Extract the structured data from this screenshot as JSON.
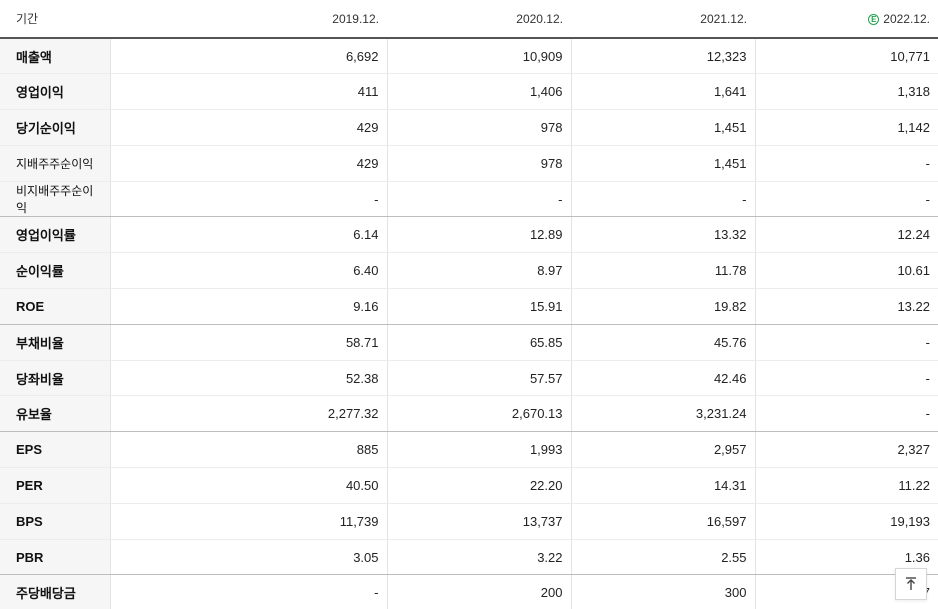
{
  "header": {
    "period_label": "기간",
    "years": [
      "2019.12.",
      "2020.12.",
      "2021.12.",
      "2022.12."
    ],
    "estimate_mark": "E"
  },
  "rows": [
    {
      "label": "매출액",
      "values": [
        "6,692",
        "10,909",
        "12,323",
        "10,771"
      ]
    },
    {
      "label": "영업이익",
      "values": [
        "411",
        "1,406",
        "1,641",
        "1,318"
      ]
    },
    {
      "label": "당기순이익",
      "values": [
        "429",
        "978",
        "1,451",
        "1,142"
      ]
    },
    {
      "label": "지배주주순이익",
      "values": [
        "429",
        "978",
        "1,451",
        "-"
      ]
    },
    {
      "label": "비지배주주순이익",
      "values": [
        "-",
        "-",
        "-",
        "-"
      ]
    },
    {
      "label": "영업이익률",
      "values": [
        "6.14",
        "12.89",
        "13.32",
        "12.24"
      ]
    },
    {
      "label": "순이익률",
      "values": [
        "6.40",
        "8.97",
        "11.78",
        "10.61"
      ]
    },
    {
      "label": "ROE",
      "values": [
        "9.16",
        "15.91",
        "19.82",
        "13.22"
      ]
    },
    {
      "label": "부채비율",
      "values": [
        "58.71",
        "65.85",
        "45.76",
        "-"
      ]
    },
    {
      "label": "당좌비율",
      "values": [
        "52.38",
        "57.57",
        "42.46",
        "-"
      ]
    },
    {
      "label": "유보율",
      "values": [
        "2,277.32",
        "2,670.13",
        "3,231.24",
        "-"
      ]
    },
    {
      "label": "EPS",
      "values": [
        "885",
        "1,993",
        "2,957",
        "2,327"
      ]
    },
    {
      "label": "PER",
      "values": [
        "40.50",
        "22.20",
        "14.31",
        "11.22"
      ]
    },
    {
      "label": "BPS",
      "values": [
        "11,739",
        "13,737",
        "16,597",
        "19,193"
      ]
    },
    {
      "label": "PBR",
      "values": [
        "3.05",
        "3.22",
        "2.55",
        "1.36"
      ]
    },
    {
      "label": "주당배당금",
      "values": [
        "-",
        "200",
        "300",
        "7"
      ]
    }
  ],
  "scroll_top": {
    "icon": "arrow-up-to-top-icon"
  }
}
